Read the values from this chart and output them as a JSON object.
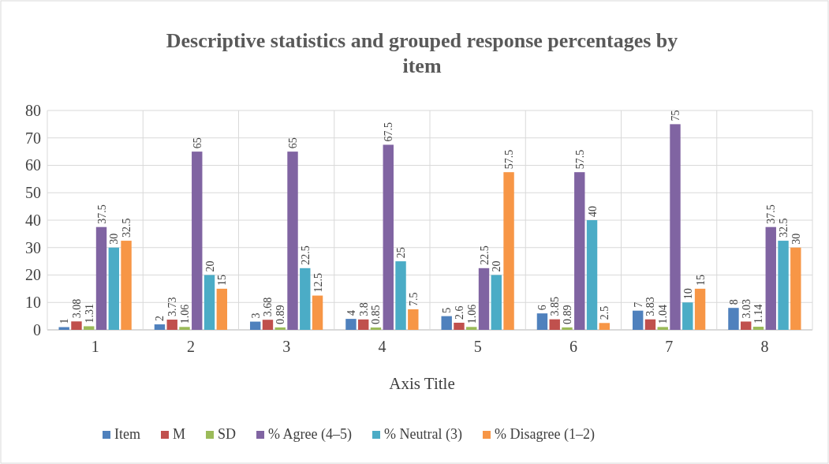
{
  "chart_data": {
    "type": "bar",
    "title": "Descriptive statistics and grouped response percentages by item",
    "xlabel": "Axis Title",
    "categories": [
      "1",
      "2",
      "3",
      "4",
      "5",
      "6",
      "7",
      "8"
    ],
    "series": [
      {
        "name": "Item",
        "color": "#4f81bd",
        "values": [
          1,
          2,
          3,
          4,
          5,
          6,
          7,
          8
        ]
      },
      {
        "name": "M",
        "color": "#c0504d",
        "values": [
          3.08,
          3.73,
          3.68,
          3.8,
          2.6,
          3.85,
          3.83,
          3.03
        ]
      },
      {
        "name": "SD",
        "color": "#9bbb59",
        "values": [
          1.31,
          1.06,
          0.89,
          0.85,
          1.06,
          0.89,
          1.04,
          1.14
        ]
      },
      {
        "name": "% Agree (4–5)",
        "color": "#8064a2",
        "values": [
          37.5,
          65,
          65,
          67.5,
          22.5,
          57.5,
          75,
          37.5
        ]
      },
      {
        "name": "% Neutral (3)",
        "color": "#4bacc6",
        "values": [
          30,
          20,
          22.5,
          25,
          20,
          40,
          10,
          32.5
        ]
      },
      {
        "name": "% Disagree (1–2)",
        "color": "#f79646",
        "values": [
          32.5,
          15,
          12.5,
          7.5,
          57.5,
          2.5,
          15,
          30
        ]
      }
    ],
    "ylim": [
      0,
      80
    ],
    "yticks": [
      0,
      10,
      20,
      30,
      40,
      50,
      60,
      70,
      80
    ],
    "grid": true,
    "legend": "bottom",
    "data_labels": true
  }
}
